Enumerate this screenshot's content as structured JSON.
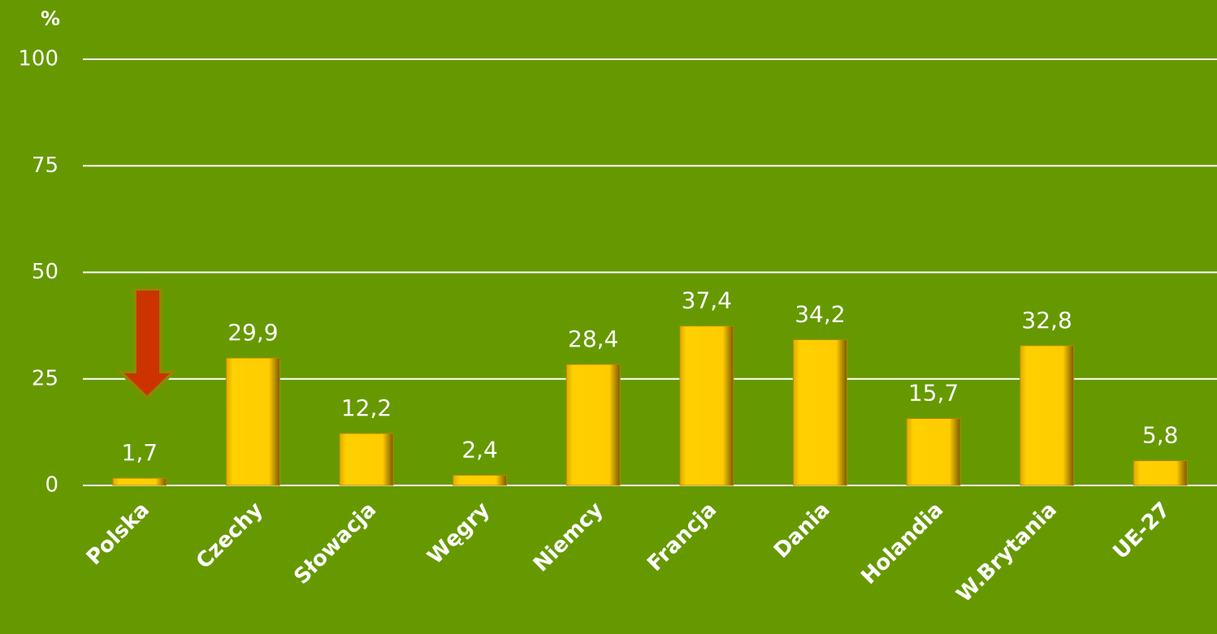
{
  "chart_data": {
    "type": "bar",
    "y_label": "%",
    "categories": [
      "Polska",
      "Czechy",
      "Słowacja",
      "Węgry",
      "Niemcy",
      "Francja",
      "Dania",
      "Holandia",
      "W.Brytania",
      "UE-27"
    ],
    "values": [
      1.7,
      29.9,
      12.2,
      2.4,
      28.4,
      37.4,
      34.2,
      15.7,
      32.8,
      5.8
    ],
    "value_labels": [
      "1,7",
      "29,9",
      "12,2",
      "2,4",
      "28,4",
      "37,4",
      "34,2",
      "15,7",
      "32,8",
      "5,8"
    ],
    "color": "#ffcc00",
    "ylim": [
      0,
      100
    ],
    "yticks": [
      0,
      25,
      50,
      75,
      100
    ],
    "grid": true
  }
}
